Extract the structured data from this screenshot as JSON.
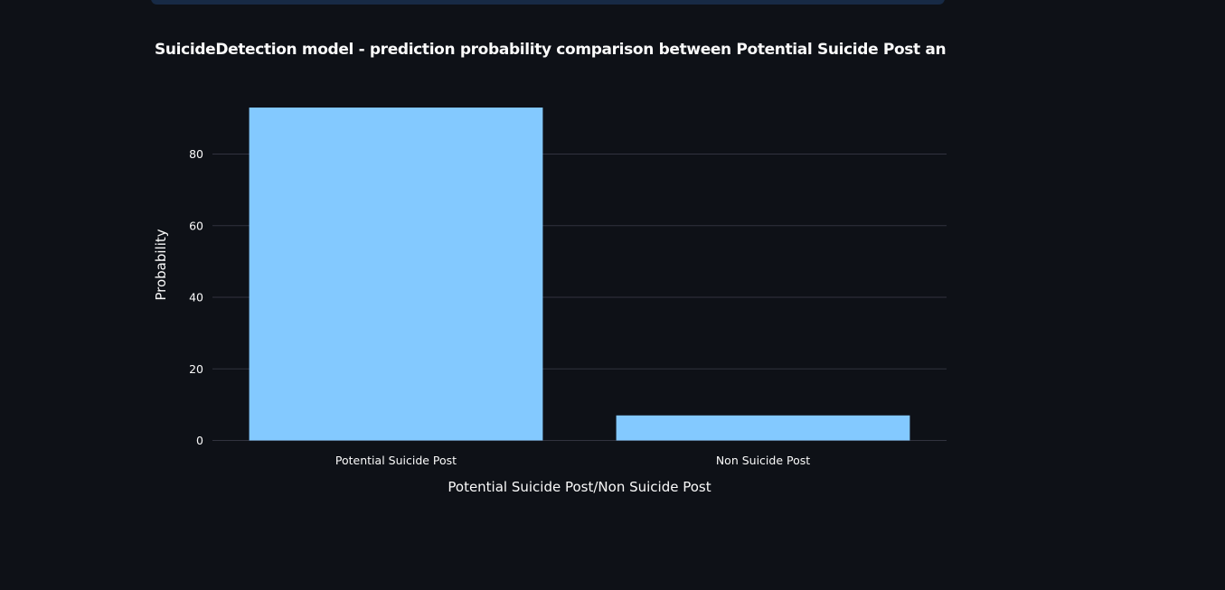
{
  "chart_data": {
    "type": "bar",
    "title": "SuicideDetection model - prediction probability comparison between Potential Suicide Post and Non Suicide Post",
    "xlabel": "Potential Suicide Post/Non Suicide Post",
    "ylabel": "Probability",
    "categories": [
      "Potential Suicide Post",
      "Non Suicide Post"
    ],
    "values": [
      93,
      7
    ],
    "ylim": [
      0,
      97
    ],
    "yticks": [
      0,
      20,
      40,
      60,
      80
    ],
    "grid": true,
    "bar_color": "#83c9ff"
  },
  "theme": {
    "background": "#0e1117",
    "text": "#fafafa",
    "gridline": "#31333f",
    "top_strip": "#172a45"
  }
}
